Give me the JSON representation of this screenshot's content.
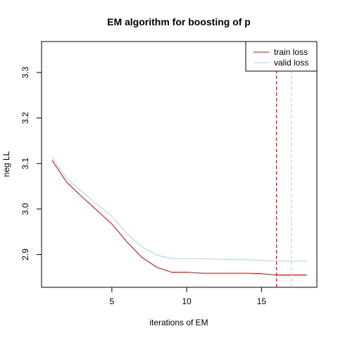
{
  "chart_data": {
    "type": "line",
    "title": "EM algorithm for boosting of p",
    "xlabel": "iterations of EM",
    "ylabel": "neg LL",
    "xlim": [
      0.3,
      18.7
    ],
    "ylim": [
      2.828,
      3.368
    ],
    "x_ticks": [
      5,
      10,
      15
    ],
    "y_ticks": [
      2.9,
      3.0,
      3.1,
      3.2,
      3.3
    ],
    "x_tick_labels": [
      "5",
      "10",
      "15"
    ],
    "y_tick_labels": [
      "2.9",
      "3.0",
      "3.1",
      "3.2",
      "3.3"
    ],
    "grid": false,
    "legend_position": "top-right",
    "x": [
      1,
      2,
      3,
      4,
      5,
      6,
      7,
      8,
      9,
      10,
      11,
      12,
      13,
      14,
      15,
      16,
      17,
      18
    ],
    "series": [
      {
        "name": "train loss",
        "color": "#dd0000",
        "values": [
          3.107,
          3.058,
          3.027,
          2.997,
          2.967,
          2.928,
          2.894,
          2.872,
          2.861,
          2.861,
          2.859,
          2.859,
          2.859,
          2.859,
          2.858,
          2.855,
          2.855,
          2.855
        ]
      },
      {
        "name": "valid loss",
        "color": "#a8d8e8",
        "values": [
          3.114,
          3.066,
          3.038,
          3.011,
          2.984,
          2.946,
          2.917,
          2.899,
          2.891,
          2.891,
          2.891,
          2.89,
          2.889,
          2.889,
          2.887,
          2.886,
          2.885,
          2.886
        ]
      }
    ],
    "vertical_lines": [
      {
        "name": "train-best-iteration",
        "x": 16,
        "color": "#dd0000",
        "style": "dashed"
      },
      {
        "name": "valid-best-iteration",
        "x": 17,
        "color": "#a8d8e8",
        "style": "dashed"
      }
    ]
  }
}
